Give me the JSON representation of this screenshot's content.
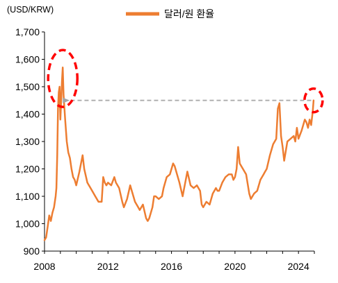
{
  "chart_data": {
    "type": "line",
    "title": "",
    "xlabel": "",
    "ylabel": "(USD/KRW)",
    "ylim": [
      900,
      1700
    ],
    "xlim": [
      2008,
      2025
    ],
    "grid": false,
    "legend_position": "top-center",
    "y_ticks": [
      "900",
      "1,000",
      "1,100",
      "1,200",
      "1,300",
      "1,400",
      "1,500",
      "1,600",
      "1,700"
    ],
    "y_tick_values": [
      900,
      1000,
      1100,
      1200,
      1300,
      1400,
      1500,
      1600,
      1700
    ],
    "x_ticks": [
      "2008",
      "2012",
      "2016",
      "2020",
      "2024"
    ],
    "x_tick_values": [
      2008,
      2012,
      2016,
      2020,
      2024
    ],
    "series": [
      {
        "name": "달러/원 환율",
        "color": "#ED7D31",
        "x": [
          2008.0,
          2008.1,
          2008.2,
          2008.3,
          2008.4,
          2008.5,
          2008.6,
          2008.7,
          2008.75,
          2008.8,
          2008.85,
          2008.9,
          2008.95,
          2009.0,
          2009.05,
          2009.1,
          2009.15,
          2009.2,
          2009.3,
          2009.4,
          2009.5,
          2009.6,
          2009.7,
          2009.8,
          2009.9,
          2010.0,
          2010.2,
          2010.4,
          2010.5,
          2010.7,
          2010.9,
          2011.0,
          2011.2,
          2011.4,
          2011.6,
          2011.7,
          2011.8,
          2011.9,
          2012.0,
          2012.2,
          2012.4,
          2012.5,
          2012.7,
          2012.9,
          2013.0,
          2013.2,
          2013.4,
          2013.5,
          2013.7,
          2013.9,
          2014.0,
          2014.2,
          2014.4,
          2014.5,
          2014.6,
          2014.8,
          2014.9,
          2015.0,
          2015.2,
          2015.4,
          2015.5,
          2015.7,
          2015.9,
          2016.0,
          2016.1,
          2016.2,
          2016.4,
          2016.5,
          2016.7,
          2016.9,
          2017.0,
          2017.2,
          2017.4,
          2017.6,
          2017.8,
          2017.9,
          2018.0,
          2018.2,
          2018.4,
          2018.6,
          2018.8,
          2018.9,
          2019.0,
          2019.2,
          2019.4,
          2019.6,
          2019.8,
          2019.9,
          2020.0,
          2020.1,
          2020.2,
          2020.3,
          2020.5,
          2020.7,
          2020.9,
          2021.0,
          2021.2,
          2021.4,
          2021.6,
          2021.8,
          2021.9,
          2022.0,
          2022.2,
          2022.4,
          2022.6,
          2022.7,
          2022.8,
          2022.9,
          2023.0,
          2023.1,
          2023.3,
          2023.5,
          2023.7,
          2023.8,
          2023.9,
          2024.0,
          2024.2,
          2024.4,
          2024.5,
          2024.6,
          2024.7,
          2024.8,
          2024.9,
          2024.95
        ],
        "values": [
          940,
          950,
          990,
          1030,
          1010,
          1040,
          1060,
          1100,
          1130,
          1250,
          1420,
          1480,
          1500,
          1380,
          1450,
          1520,
          1570,
          1470,
          1380,
          1300,
          1260,
          1240,
          1200,
          1170,
          1160,
          1140,
          1190,
          1250,
          1200,
          1150,
          1130,
          1120,
          1100,
          1080,
          1080,
          1170,
          1150,
          1140,
          1150,
          1140,
          1170,
          1150,
          1130,
          1080,
          1060,
          1090,
          1140,
          1120,
          1080,
          1060,
          1050,
          1070,
          1020,
          1010,
          1020,
          1060,
          1100,
          1100,
          1090,
          1100,
          1130,
          1170,
          1180,
          1200,
          1220,
          1210,
          1170,
          1150,
          1100,
          1160,
          1190,
          1140,
          1130,
          1140,
          1120,
          1070,
          1060,
          1080,
          1070,
          1110,
          1130,
          1120,
          1120,
          1150,
          1170,
          1180,
          1180,
          1160,
          1170,
          1200,
          1280,
          1220,
          1200,
          1180,
          1110,
          1090,
          1110,
          1120,
          1160,
          1180,
          1190,
          1200,
          1250,
          1290,
          1310,
          1420,
          1440,
          1320,
          1280,
          1230,
          1300,
          1310,
          1320,
          1300,
          1350,
          1310,
          1340,
          1380,
          1370,
          1350,
          1380,
          1360,
          1410,
          1450
        ]
      }
    ],
    "annotations": [
      {
        "type": "dashed-ellipse",
        "color": "#FF0000",
        "at": {
          "x": 2009.15,
          "y": 1530
        }
      },
      {
        "type": "dashed-ellipse",
        "color": "#FF0000",
        "at": {
          "x": 2024.95,
          "y": 1450
        }
      },
      {
        "type": "dashed-arrow",
        "color": "#B0B0B0",
        "from": {
          "x": 2024.8,
          "y": 1450
        },
        "to": {
          "x": 2009.5,
          "y": 1450
        }
      }
    ]
  }
}
